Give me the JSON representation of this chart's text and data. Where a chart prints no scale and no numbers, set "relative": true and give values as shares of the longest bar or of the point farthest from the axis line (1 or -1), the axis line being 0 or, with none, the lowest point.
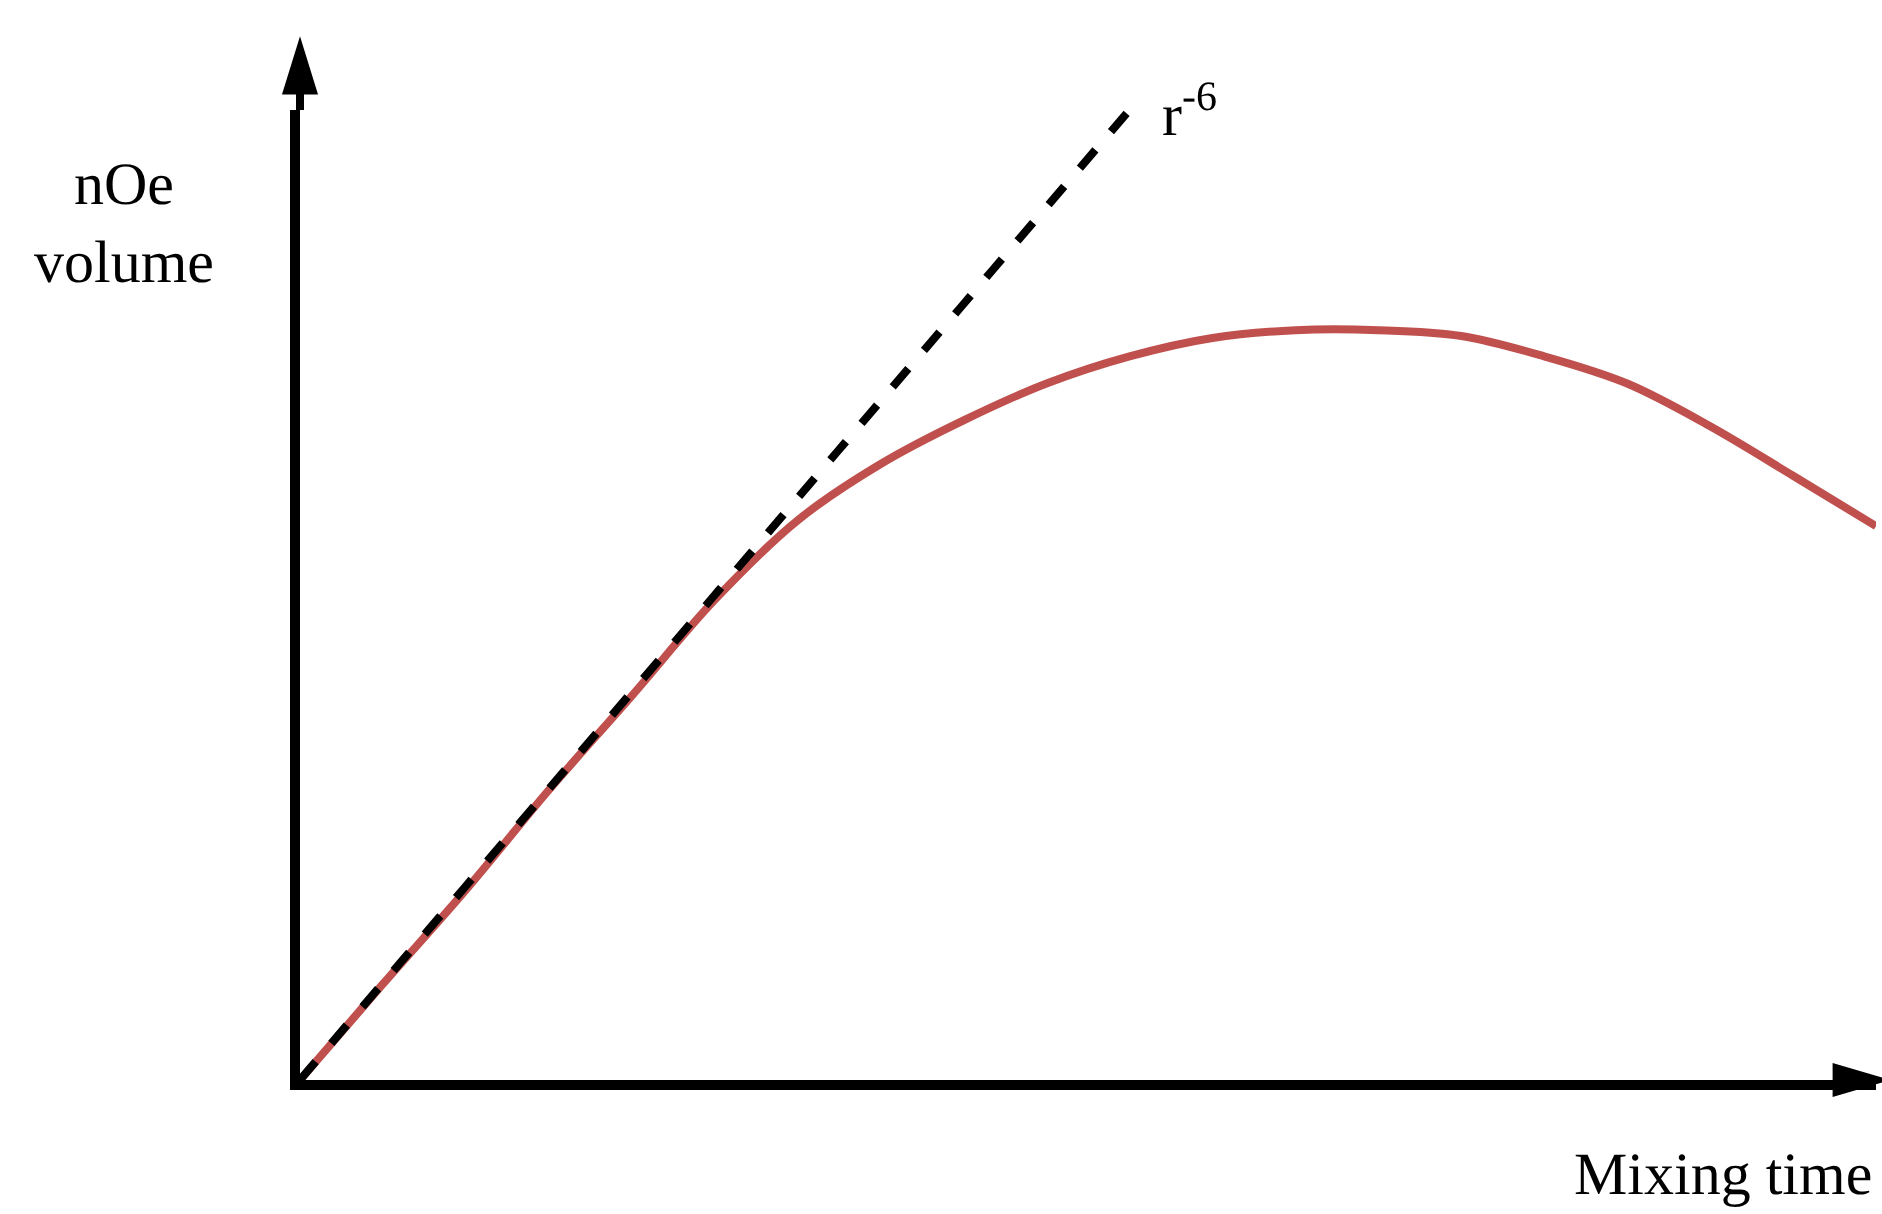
{
  "chart_data": {
    "type": "line",
    "relative": true,
    "xlabel": "Mixing time",
    "ylabel": "nOe\nvolume",
    "categories": [
      null,
      null,
      null,
      null,
      null,
      null,
      null,
      null,
      null,
      null,
      null,
      null,
      null,
      null,
      null,
      null,
      null,
      null,
      null,
      null
    ],
    "series": [
      {
        "color": "#c0504d",
        "line_style": "solid",
        "values": [
          0,
          0.099,
          0.196,
          0.299,
          0.396,
          0.495,
          0.577,
          0.635,
          0.68,
          0.718,
          0.746,
          0.765,
          0.773,
          0.773,
          0.767,
          0.746,
          0.718,
          0.674,
          0.623,
          0.571
        ]
      },
      {
        "name": "r$^{-6}$",
        "color": "#000000",
        "line_style": "dashed",
        "values": [
          0,
          0.1,
          0.2,
          0.3,
          0.4,
          0.5,
          0.6,
          0.7,
          0.8,
          0.9,
          1.0,
          null,
          null,
          null,
          null,
          null,
          null,
          null,
          null,
          null
        ]
      }
    ],
    "marker": "none"
  }
}
